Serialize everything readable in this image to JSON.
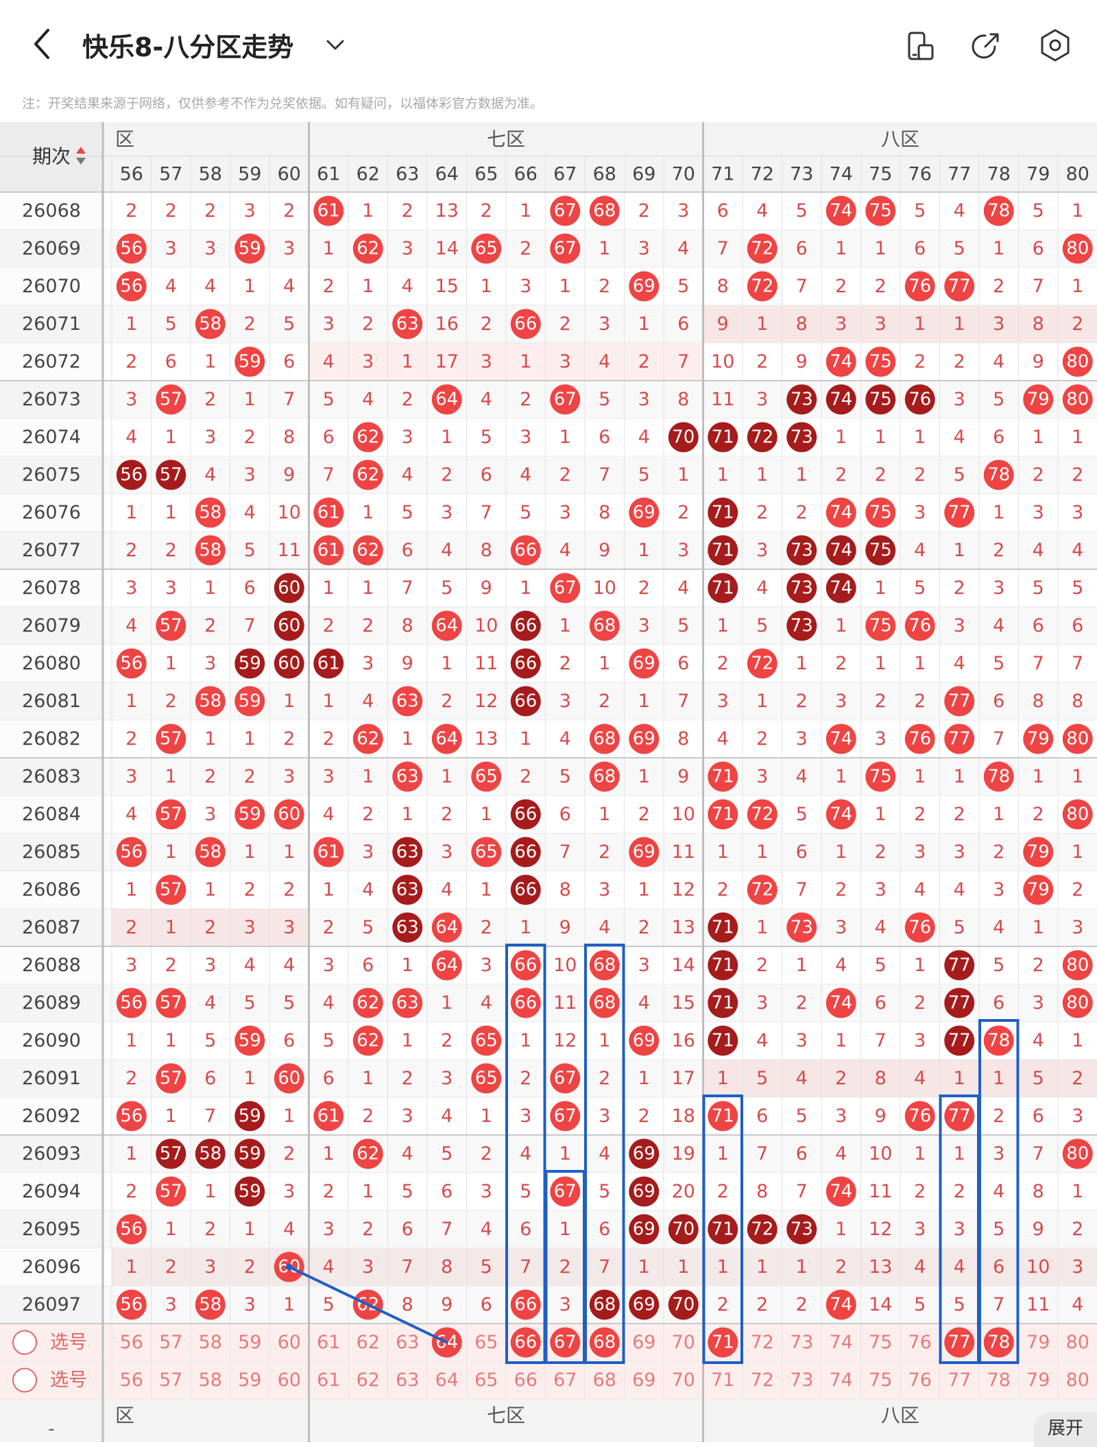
{
  "header": {
    "title": "快乐8-八分区走势",
    "back_icon": "chevron-left-icon",
    "dropdown_icon": "chevron-down-icon",
    "actions": [
      "screen-rotate-icon",
      "share-icon",
      "settings-icon"
    ]
  },
  "notice": "注：开奖结果来源于网络，仅供参考不作为兑奖依据。如有疑问，以福体彩官方数据为准。",
  "table": {
    "period_header": "期次",
    "zone_labels": [
      "六区",
      "七区",
      "八区"
    ],
    "zone_label_partial": "区",
    "columns": [
      56,
      57,
      58,
      59,
      60,
      61,
      62,
      63,
      64,
      65,
      66,
      67,
      68,
      69,
      70,
      71,
      72,
      73,
      74,
      75,
      76,
      77,
      78,
      79,
      80
    ],
    "dark_marks": [
      {
        "row": 5,
        "col": 17
      },
      {
        "row": 5,
        "col": 18
      },
      {
        "row": 5,
        "col": 19
      },
      {
        "row": 5,
        "col": 20
      },
      {
        "row": 6,
        "col": 14
      },
      {
        "row": 6,
        "col": 15
      },
      {
        "row": 6,
        "col": 16
      },
      {
        "row": 6,
        "col": 17
      },
      {
        "row": 7,
        "col": 0
      },
      {
        "row": 7,
        "col": 1
      },
      {
        "row": 8,
        "col": 15
      },
      {
        "row": 9,
        "col": 15
      },
      {
        "row": 9,
        "col": 17
      },
      {
        "row": 9,
        "col": 18
      },
      {
        "row": 9,
        "col": 19
      },
      {
        "row": 10,
        "col": 4
      },
      {
        "row": 10,
        "col": 15
      },
      {
        "row": 10,
        "col": 17
      },
      {
        "row": 10,
        "col": 18
      },
      {
        "row": 11,
        "col": 4
      },
      {
        "row": 11,
        "col": 10
      },
      {
        "row": 11,
        "col": 17
      },
      {
        "row": 12,
        "col": 3
      },
      {
        "row": 12,
        "col": 4
      },
      {
        "row": 12,
        "col": 5
      },
      {
        "row": 12,
        "col": 10
      },
      {
        "row": 13,
        "col": 10
      },
      {
        "row": 16,
        "col": 10
      },
      {
        "row": 17,
        "col": 7
      },
      {
        "row": 17,
        "col": 10
      },
      {
        "row": 18,
        "col": 7
      },
      {
        "row": 18,
        "col": 10
      },
      {
        "row": 19,
        "col": 7
      },
      {
        "row": 19,
        "col": 15
      },
      {
        "row": 20,
        "col": 15
      },
      {
        "row": 20,
        "col": 21
      },
      {
        "row": 21,
        "col": 15
      },
      {
        "row": 21,
        "col": 21
      },
      {
        "row": 22,
        "col": 15
      },
      {
        "row": 22,
        "col": 21
      },
      {
        "row": 24,
        "col": 3
      },
      {
        "row": 25,
        "col": 1
      },
      {
        "row": 25,
        "col": 2
      },
      {
        "row": 25,
        "col": 3
      },
      {
        "row": 25,
        "col": 13
      },
      {
        "row": 26,
        "col": 3
      },
      {
        "row": 26,
        "col": 13
      },
      {
        "row": 27,
        "col": 13
      },
      {
        "row": 27,
        "col": 14
      },
      {
        "row": 27,
        "col": 15
      },
      {
        "row": 27,
        "col": 16
      },
      {
        "row": 27,
        "col": 17
      },
      {
        "row": 29,
        "col": 12
      },
      {
        "row": 29,
        "col": 13
      },
      {
        "row": 29,
        "col": 14
      }
    ],
    "rows": [
      {
        "period": "26068",
        "v": [
          "2",
          "2",
          "2",
          "3",
          "2",
          "61",
          "1",
          "2",
          "13",
          "2",
          "1",
          "67",
          "68",
          "2",
          "3",
          "6",
          "4",
          "5",
          "74",
          "75",
          "5",
          "4",
          "78",
          "5",
          "1"
        ]
      },
      {
        "period": "26069",
        "v": [
          "56",
          "3",
          "3",
          "59",
          "3",
          "1",
          "62",
          "3",
          "14",
          "65",
          "2",
          "67",
          "1",
          "3",
          "4",
          "7",
          "72",
          "6",
          "1",
          "1",
          "6",
          "5",
          "1",
          "6",
          "80"
        ]
      },
      {
        "period": "26070",
        "v": [
          "56",
          "4",
          "4",
          "1",
          "4",
          "2",
          "1",
          "4",
          "15",
          "1",
          "3",
          "1",
          "2",
          "69",
          "5",
          "8",
          "72",
          "7",
          "2",
          "2",
          "76",
          "77",
          "2",
          "7",
          "1"
        ]
      },
      {
        "period": "26071",
        "v": [
          "1",
          "5",
          "58",
          "2",
          "5",
          "3",
          "2",
          "63",
          "16",
          "2",
          "66",
          "2",
          "3",
          "1",
          "6",
          "9",
          "1",
          "8",
          "3",
          "3",
          "1",
          "1",
          "3",
          "8",
          "2"
        ]
      },
      {
        "period": "26072",
        "v": [
          "2",
          "6",
          "1",
          "59",
          "6",
          "4",
          "3",
          "1",
          "17",
          "3",
          "1",
          "3",
          "4",
          "2",
          "7",
          "10",
          "2",
          "9",
          "74",
          "75",
          "2",
          "2",
          "4",
          "9",
          "80"
        ]
      },
      {
        "period": "26073",
        "v": [
          "3",
          "57",
          "2",
          "1",
          "7",
          "5",
          "4",
          "2",
          "64",
          "4",
          "2",
          "67",
          "5",
          "3",
          "8",
          "11",
          "3",
          "73",
          "74",
          "75",
          "76",
          "3",
          "5",
          "79",
          "80"
        ]
      },
      {
        "period": "26074",
        "v": [
          "4",
          "1",
          "3",
          "2",
          "8",
          "6",
          "62",
          "3",
          "1",
          "5",
          "3",
          "1",
          "6",
          "4",
          "70",
          "71",
          "72",
          "73",
          "1",
          "1",
          "1",
          "4",
          "6",
          "1",
          "1"
        ]
      },
      {
        "period": "26075",
        "v": [
          "56",
          "57",
          "4",
          "3",
          "9",
          "7",
          "62",
          "4",
          "2",
          "6",
          "4",
          "2",
          "7",
          "5",
          "1",
          "1",
          "1",
          "1",
          "2",
          "2",
          "2",
          "5",
          "78",
          "2",
          "2"
        ]
      },
      {
        "period": "26076",
        "v": [
          "1",
          "1",
          "58",
          "4",
          "10",
          "61",
          "1",
          "5",
          "3",
          "7",
          "5",
          "3",
          "8",
          "69",
          "2",
          "71",
          "2",
          "2",
          "74",
          "75",
          "3",
          "77",
          "1",
          "3",
          "3"
        ]
      },
      {
        "period": "26077",
        "v": [
          "2",
          "2",
          "58",
          "5",
          "11",
          "61",
          "62",
          "6",
          "4",
          "8",
          "66",
          "4",
          "9",
          "1",
          "3",
          "71",
          "3",
          "73",
          "74",
          "75",
          "4",
          "1",
          "2",
          "4",
          "4"
        ]
      },
      {
        "period": "26078",
        "v": [
          "3",
          "3",
          "1",
          "6",
          "60",
          "1",
          "1",
          "7",
          "5",
          "9",
          "1",
          "67",
          "10",
          "2",
          "4",
          "71",
          "4",
          "73",
          "74",
          "1",
          "5",
          "2",
          "3",
          "5",
          "5"
        ]
      },
      {
        "period": "26079",
        "v": [
          "4",
          "57",
          "2",
          "7",
          "60",
          "2",
          "2",
          "8",
          "64",
          "10",
          "66",
          "1",
          "68",
          "3",
          "5",
          "1",
          "5",
          "73",
          "1",
          "75",
          "76",
          "3",
          "4",
          "6",
          "6"
        ]
      },
      {
        "period": "26080",
        "v": [
          "56",
          "1",
          "3",
          "59",
          "60",
          "61",
          "3",
          "9",
          "1",
          "11",
          "66",
          "2",
          "1",
          "69",
          "6",
          "2",
          "72",
          "1",
          "2",
          "1",
          "1",
          "4",
          "5",
          "7",
          "7"
        ]
      },
      {
        "period": "26081",
        "v": [
          "1",
          "2",
          "58",
          "59",
          "1",
          "1",
          "4",
          "63",
          "2",
          "12",
          "66",
          "3",
          "2",
          "1",
          "7",
          "3",
          "1",
          "2",
          "3",
          "2",
          "2",
          "77",
          "6",
          "8",
          "8"
        ]
      },
      {
        "period": "26082",
        "v": [
          "2",
          "57",
          "1",
          "1",
          "2",
          "2",
          "62",
          "1",
          "64",
          "13",
          "1",
          "4",
          "68",
          "69",
          "8",
          "4",
          "2",
          "3",
          "74",
          "3",
          "76",
          "77",
          "7",
          "79",
          "80"
        ]
      },
      {
        "period": "26083",
        "v": [
          "3",
          "1",
          "2",
          "2",
          "3",
          "3",
          "1",
          "63",
          "1",
          "65",
          "2",
          "5",
          "68",
          "1",
          "9",
          "71",
          "3",
          "4",
          "1",
          "75",
          "1",
          "1",
          "78",
          "1",
          "1"
        ]
      },
      {
        "period": "26084",
        "v": [
          "4",
          "57",
          "3",
          "59",
          "60",
          "4",
          "2",
          "1",
          "2",
          "1",
          "66",
          "6",
          "1",
          "2",
          "10",
          "71",
          "72",
          "5",
          "74",
          "1",
          "2",
          "2",
          "1",
          "2",
          "80"
        ]
      },
      {
        "period": "26085",
        "v": [
          "56",
          "1",
          "58",
          "1",
          "1",
          "61",
          "3",
          "63",
          "3",
          "65",
          "66",
          "7",
          "2",
          "69",
          "11",
          "1",
          "1",
          "6",
          "1",
          "2",
          "3",
          "3",
          "2",
          "79",
          "1"
        ]
      },
      {
        "period": "26086",
        "v": [
          "1",
          "57",
          "1",
          "2",
          "2",
          "1",
          "4",
          "63",
          "4",
          "1",
          "66",
          "8",
          "3",
          "1",
          "12",
          "2",
          "72",
          "7",
          "2",
          "3",
          "4",
          "4",
          "3",
          "79",
          "2"
        ]
      },
      {
        "period": "26087",
        "v": [
          "2",
          "1",
          "2",
          "3",
          "3",
          "2",
          "5",
          "63",
          "64",
          "2",
          "1",
          "9",
          "4",
          "2",
          "13",
          "71",
          "1",
          "73",
          "3",
          "4",
          "76",
          "5",
          "4",
          "1",
          "3"
        ]
      },
      {
        "period": "26088",
        "v": [
          "3",
          "2",
          "3",
          "4",
          "4",
          "3",
          "6",
          "1",
          "64",
          "3",
          "66",
          "10",
          "68",
          "3",
          "14",
          "71",
          "2",
          "1",
          "4",
          "5",
          "1",
          "77",
          "5",
          "2",
          "80"
        ]
      },
      {
        "period": "26089",
        "v": [
          "56",
          "57",
          "4",
          "5",
          "5",
          "4",
          "62",
          "63",
          "1",
          "4",
          "66",
          "11",
          "68",
          "4",
          "15",
          "71",
          "3",
          "2",
          "74",
          "6",
          "2",
          "77",
          "6",
          "3",
          "80"
        ]
      },
      {
        "period": "26090",
        "v": [
          "1",
          "1",
          "5",
          "59",
          "6",
          "5",
          "62",
          "1",
          "2",
          "65",
          "1",
          "12",
          "1",
          "69",
          "16",
          "71",
          "4",
          "3",
          "1",
          "7",
          "3",
          "77",
          "78",
          "4",
          "1"
        ]
      },
      {
        "period": "26091",
        "v": [
          "2",
          "57",
          "6",
          "1",
          "60",
          "6",
          "1",
          "2",
          "3",
          "65",
          "2",
          "67",
          "2",
          "1",
          "17",
          "1",
          "5",
          "4",
          "2",
          "8",
          "4",
          "1",
          "1",
          "5",
          "2"
        ]
      },
      {
        "period": "26092",
        "v": [
          "56",
          "1",
          "7",
          "59",
          "1",
          "61",
          "2",
          "3",
          "4",
          "1",
          "3",
          "67",
          "3",
          "2",
          "18",
          "71",
          "6",
          "5",
          "3",
          "9",
          "76",
          "77",
          "2",
          "6",
          "3"
        ]
      },
      {
        "period": "26093",
        "v": [
          "1",
          "57",
          "58",
          "59",
          "2",
          "1",
          "62",
          "4",
          "5",
          "2",
          "4",
          "1",
          "4",
          "69",
          "19",
          "1",
          "7",
          "6",
          "4",
          "10",
          "1",
          "1",
          "3",
          "7",
          "80"
        ]
      },
      {
        "period": "26094",
        "v": [
          "2",
          "57",
          "1",
          "59",
          "3",
          "2",
          "1",
          "5",
          "6",
          "3",
          "5",
          "67",
          "5",
          "69",
          "20",
          "2",
          "8",
          "7",
          "74",
          "11",
          "2",
          "2",
          "4",
          "8",
          "1"
        ]
      },
      {
        "period": "26095",
        "v": [
          "56",
          "1",
          "2",
          "1",
          "4",
          "3",
          "2",
          "6",
          "7",
          "4",
          "6",
          "1",
          "6",
          "69",
          "70",
          "71",
          "72",
          "73",
          "1",
          "12",
          "3",
          "3",
          "5",
          "9",
          "2"
        ]
      },
      {
        "period": "26096",
        "v": [
          "1",
          "2",
          "3",
          "2",
          "60",
          "4",
          "3",
          "7",
          "8",
          "5",
          "7",
          "2",
          "7",
          "1",
          "1",
          "1",
          "1",
          "1",
          "2",
          "13",
          "4",
          "4",
          "6",
          "10",
          "3"
        ]
      },
      {
        "period": "26097",
        "v": [
          "56",
          "3",
          "58",
          "3",
          "1",
          "5",
          "62",
          "8",
          "9",
          "6",
          "66",
          "3",
          "68",
          "69",
          "70",
          "2",
          "2",
          "2",
          "74",
          "14",
          "5",
          "5",
          "7",
          "11",
          "4"
        ]
      }
    ],
    "select_label": "选号",
    "selection_row_1": [
      64,
      66,
      67,
      68,
      71,
      77,
      78
    ],
    "bottom_label_cell": "-"
  },
  "colors": {
    "accent_red": "#ef4444",
    "dark_red": "#a61b1b",
    "light_red_text": "#e87a7a",
    "blue_annotation": "#1f5fc6"
  },
  "expand_button_label": "展开"
}
